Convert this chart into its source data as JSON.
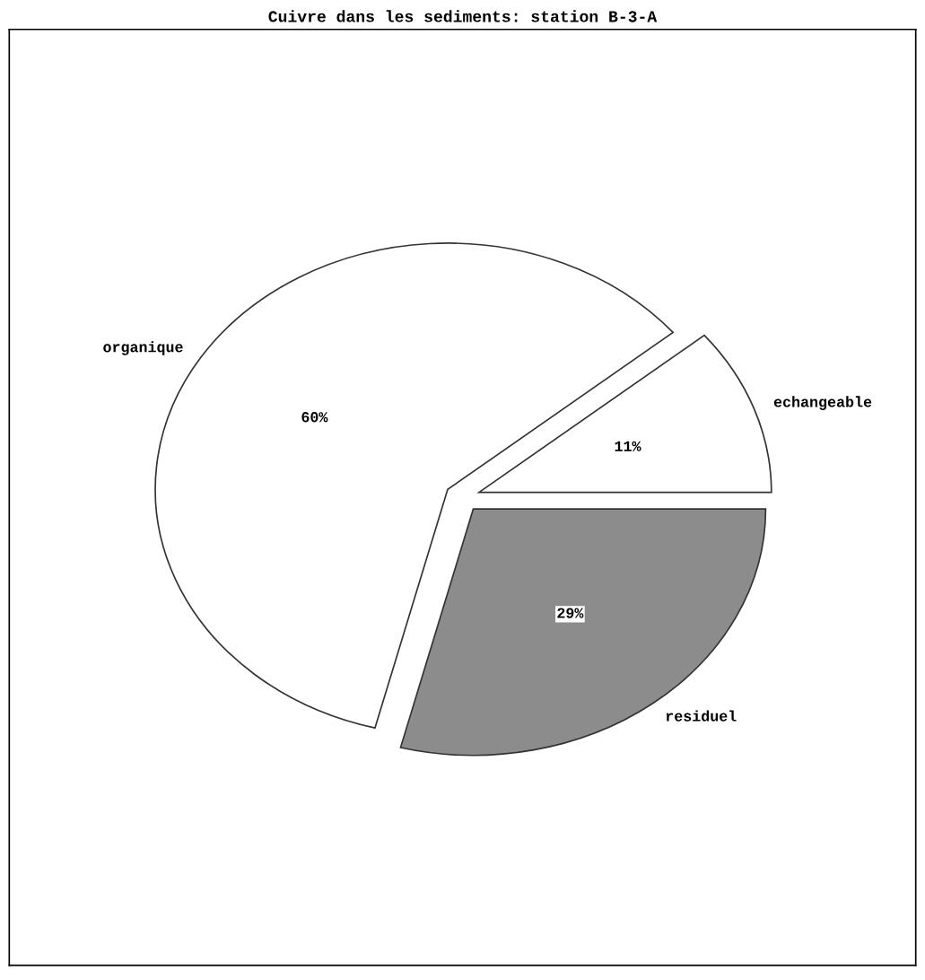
{
  "chart_data": {
    "type": "pie",
    "title": "Cuivre dans les sediments: station B-3-A",
    "categories": [
      "echangeable",
      "organique",
      "residuel"
    ],
    "values": [
      11,
      60,
      29
    ],
    "value_labels": [
      "11%",
      "60%",
      "29%"
    ],
    "colors": [
      "#ffffff",
      "#ffffff",
      "#8c8c8c"
    ],
    "legend": false
  }
}
